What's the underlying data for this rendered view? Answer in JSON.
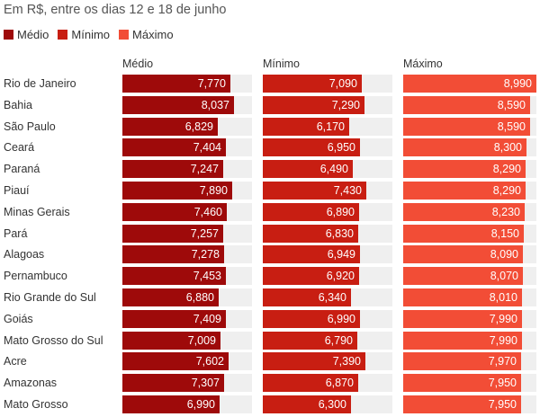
{
  "chart_data": {
    "type": "bar",
    "orientation": "horizontal",
    "subtitle": "Em R$, entre os dias 12 e 18 de junho",
    "categories": [
      "Rio de Janeiro",
      "Bahia",
      "São Paulo",
      "Ceará",
      "Paraná",
      "Piauí",
      "Minas Gerais",
      "Pará",
      "Alagoas",
      "Pernambuco",
      "Rio Grande do Sul",
      "Goiás",
      "Mato Grosso do Sul",
      "Acre",
      "Amazonas",
      "Mato Grosso"
    ],
    "series": [
      {
        "name": "Médio",
        "color": "#9e0a0a",
        "values": [
          7.77,
          8.037,
          6.829,
          7.404,
          7.247,
          7.89,
          7.46,
          7.257,
          7.278,
          7.453,
          6.88,
          7.409,
          7.009,
          7.602,
          7.307,
          6.99
        ],
        "labels": [
          "7,770",
          "8,037",
          "6,829",
          "7,404",
          "7,247",
          "7,890",
          "7,460",
          "7,257",
          "7,278",
          "7,453",
          "6,880",
          "7,409",
          "7,009",
          "7,602",
          "7,307",
          "6,990"
        ]
      },
      {
        "name": "Mínimo",
        "color": "#c81e12",
        "values": [
          7.09,
          7.29,
          6.17,
          6.95,
          6.49,
          7.43,
          6.89,
          6.83,
          6.949,
          6.92,
          6.34,
          6.99,
          6.79,
          7.39,
          6.87,
          6.3
        ],
        "labels": [
          "7,090",
          "7,290",
          "6,170",
          "6,950",
          "6,490",
          "7,430",
          "6,890",
          "6,830",
          "6,949",
          "6,920",
          "6,340",
          "6,990",
          "6,790",
          "7,390",
          "6,870",
          "6,300"
        ]
      },
      {
        "name": "Máximo",
        "color": "#f24d36",
        "values": [
          8.99,
          8.59,
          8.59,
          8.3,
          8.29,
          8.29,
          8.23,
          8.15,
          8.09,
          8.07,
          8.01,
          7.99,
          7.99,
          7.97,
          7.95,
          7.95
        ],
        "labels": [
          "8,990",
          "8,590",
          "8,590",
          "8,300",
          "8,290",
          "8,290",
          "8,230",
          "8,150",
          "8,090",
          "8,070",
          "8,010",
          "7,990",
          "7,990",
          "7,970",
          "7,950",
          "7,950"
        ]
      }
    ],
    "legend_position": "top-left",
    "track_color": "#efefef",
    "grid": false
  }
}
